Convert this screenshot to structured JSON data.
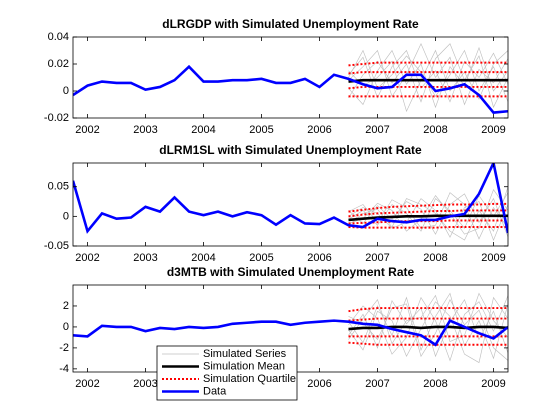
{
  "chart_data": [
    {
      "type": "line",
      "title": "dLRGDP with Simulated Unemployment Rate",
      "xlim": [
        2001.75,
        2009.25
      ],
      "xticks": [
        2002,
        2003,
        2004,
        2005,
        2006,
        2007,
        2008,
        2009
      ],
      "ylim": [
        -0.02,
        0.04
      ],
      "yticks": [
        -0.02,
        0,
        0.02,
        0.04
      ],
      "series": [
        {
          "color": "#bfbfbf",
          "linewidth": 0.5,
          "style": "solid",
          "x": [
            2006.5,
            2006.75,
            2007,
            2007.25,
            2007.5,
            2007.75,
            2008,
            2008.25,
            2008.5,
            2008.75,
            2009,
            2009.25
          ],
          "values": [
            [
              0.012,
              0.025,
              -0.005,
              0.018,
              0.03,
              0.002,
              0.015,
              -0.008,
              0.022,
              0.01,
              0.028,
              0.005
            ],
            [
              0.002,
              -0.01,
              0.015,
              0.03,
              0.005,
              0.02,
              -0.012,
              0.018,
              0.004,
              0.032,
              0,
              0.015
            ],
            [
              0.008,
              0.018,
              0.03,
              -0.004,
              0.012,
              0.035,
              0.01,
              0.025,
              -0.01,
              0.016,
              0.006,
              0.024
            ],
            [
              0.015,
              0.004,
              0.01,
              0.022,
              -0.015,
              0.008,
              0.03,
              0,
              0.014,
              -0.006,
              0.02,
              0.03
            ],
            [
              -0.005,
              0.012,
              0.022,
              0.006,
              0.02,
              -0.008,
              0.024,
              0.035,
              0.008,
              0.026,
              -0.012,
              0.01
            ],
            [
              0.01,
              0.03,
              0.002,
              0.012,
              0.026,
              0.014,
              -0.004,
              0.012,
              0.03,
              0,
              0.018,
              -0.008
            ]
          ]
        },
        {
          "color": "#000000",
          "linewidth": 2,
          "style": "solid",
          "x": [
            2006.5,
            2006.75,
            2007,
            2007.25,
            2007.5,
            2007.75,
            2008,
            2008.25,
            2008.5,
            2008.75,
            2009,
            2009.25
          ],
          "values": [
            0.007,
            0.008,
            0.008,
            0.008,
            0.008,
            0.008,
            0.008,
            0.008,
            0.008,
            0.008,
            0.008,
            0.008
          ]
        },
        {
          "color": "#ff0000",
          "linewidth": 1.5,
          "style": "dotted",
          "x": [
            2006.5,
            2006.75,
            2007,
            2007.25,
            2007.5,
            2007.75,
            2008,
            2008.25,
            2008.5,
            2008.75,
            2009,
            2009.25
          ],
          "values": [
            [
              0.019,
              0.02,
              0.021,
              0.021,
              0.021,
              0.021,
              0.021,
              0.021,
              0.021,
              0.021,
              0.021,
              0.021
            ],
            [
              0.013,
              0.014,
              0.014,
              0.014,
              0.014,
              0.014,
              0.014,
              0.014,
              0.014,
              0.014,
              0.014,
              0.014
            ],
            [
              0.002,
              0.003,
              0.003,
              0.003,
              0.003,
              0.003,
              0.003,
              0.003,
              0.003,
              0.003,
              0.003,
              0.003
            ],
            [
              -0.004,
              -0.004,
              -0.004,
              -0.004,
              -0.004,
              -0.004,
              -0.004,
              -0.004,
              -0.004,
              -0.004,
              -0.004,
              -0.004
            ]
          ]
        },
        {
          "color": "#0000ff",
          "linewidth": 2,
          "style": "solid",
          "x": [
            2001.75,
            2002,
            2002.25,
            2002.5,
            2002.75,
            2003,
            2003.25,
            2003.5,
            2003.75,
            2004,
            2004.25,
            2004.5,
            2004.75,
            2005,
            2005.25,
            2005.5,
            2005.75,
            2006,
            2006.25,
            2006.5,
            2006.75,
            2007,
            2007.25,
            2007.5,
            2007.75,
            2008,
            2008.25,
            2008.5,
            2008.75,
            2009,
            2009.25
          ],
          "values": [
            -0.003,
            0.004,
            0.007,
            0.006,
            0.006,
            0.001,
            0.003,
            0.008,
            0.018,
            0.007,
            0.007,
            0.008,
            0.008,
            0.009,
            0.006,
            0.006,
            0.009,
            0.003,
            0.012,
            0.009,
            0.005,
            0.002,
            0.003,
            0.012,
            0.012,
            0,
            0.002,
            0.005,
            -0.003,
            -0.016,
            -0.015
          ]
        }
      ]
    },
    {
      "type": "line",
      "title": "dLRM1SL with Simulated Unemployment Rate",
      "xlim": [
        2001.75,
        2009.25
      ],
      "xticks": [
        2002,
        2003,
        2004,
        2005,
        2006,
        2007,
        2008,
        2009
      ],
      "ylim": [
        -0.05,
        0.09
      ],
      "yticks": [
        -0.05,
        0,
        0.05
      ],
      "series": [
        {
          "color": "#bfbfbf",
          "linewidth": 0.5,
          "style": "solid",
          "x": [
            2006.5,
            2006.75,
            2007,
            2007.25,
            2007.5,
            2007.75,
            2008,
            2008.25,
            2008.5,
            2008.75,
            2009,
            2009.25
          ],
          "values": [
            [
              -0.005,
              0.01,
              -0.015,
              0.02,
              0.005,
              -0.025,
              0.03,
              0.01,
              -0.02,
              0.035,
              0,
              0.04
            ],
            [
              0.01,
              -0.012,
              0.018,
              -0.005,
              0.025,
              0.012,
              -0.03,
              0.02,
              0.038,
              -0.01,
              0.03,
              -0.035
            ],
            [
              0,
              0.015,
              0.005,
              -0.02,
              -0.01,
              0.03,
              0.01,
              -0.035,
              0.015,
              0.025,
              -0.04,
              0.02
            ],
            [
              -0.012,
              -0.004,
              0.022,
              0.01,
              -0.025,
              -0.005,
              0.035,
              0.005,
              -0.03,
              -0.02,
              0.045,
              0.01
            ],
            [
              0.008,
              0.02,
              -0.01,
              0.028,
              0.015,
              -0.02,
              -0.015,
              0.04,
              0.02,
              -0.038,
              0.015,
              -0.02
            ],
            [
              -0.015,
              0.005,
              0.012,
              -0.018,
              0.03,
              0.02,
              0.005,
              -0.025,
              -0.04,
              0.01,
              -0.025,
              0.05
            ]
          ]
        },
        {
          "color": "#000000",
          "linewidth": 2,
          "style": "solid",
          "x": [
            2006.5,
            2006.75,
            2007,
            2007.25,
            2007.5,
            2007.75,
            2008,
            2008.25,
            2008.5,
            2008.75,
            2009,
            2009.25
          ],
          "values": [
            -0.006,
            -0.004,
            -0.002,
            -0.001,
            0,
            0,
            0.001,
            0.001,
            0.001,
            0.001,
            0.001,
            0.001
          ]
        },
        {
          "color": "#ff0000",
          "linewidth": 1.5,
          "style": "dotted",
          "x": [
            2006.5,
            2006.75,
            2007,
            2007.25,
            2007.5,
            2007.75,
            2008,
            2008.25,
            2008.5,
            2008.75,
            2009,
            2009.25
          ],
          "values": [
            [
              0.008,
              0.011,
              0.014,
              0.016,
              0.017,
              0.018,
              0.019,
              0.02,
              0.02,
              0.02,
              0.021,
              0.021
            ],
            [
              0,
              0.003,
              0.005,
              0.006,
              0.007,
              0.008,
              0.009,
              0.009,
              0.01,
              0.01,
              0.01,
              0.01
            ],
            [
              -0.012,
              -0.011,
              -0.01,
              -0.009,
              -0.008,
              -0.008,
              -0.008,
              -0.007,
              -0.007,
              -0.007,
              -0.007,
              -0.007
            ],
            [
              -0.018,
              -0.019,
              -0.019,
              -0.019,
              -0.019,
              -0.019,
              -0.019,
              -0.018,
              -0.018,
              -0.018,
              -0.018,
              -0.018
            ]
          ]
        },
        {
          "color": "#0000ff",
          "linewidth": 2,
          "style": "solid",
          "x": [
            2001.75,
            2002,
            2002.25,
            2002.5,
            2002.75,
            2003,
            2003.25,
            2003.5,
            2003.75,
            2004,
            2004.25,
            2004.5,
            2004.75,
            2005,
            2005.25,
            2005.5,
            2005.75,
            2006,
            2006.25,
            2006.5,
            2006.75,
            2007,
            2007.25,
            2007.5,
            2007.75,
            2008,
            2008.25,
            2008.5,
            2008.75,
            2009,
            2009.25
          ],
          "values": [
            0.06,
            -0.025,
            0.005,
            -0.004,
            -0.002,
            0.016,
            0.008,
            0.032,
            0.008,
            0.002,
            0.008,
            0,
            0.007,
            0.002,
            -0.014,
            0.002,
            -0.012,
            -0.013,
            -0.002,
            -0.015,
            -0.018,
            -0.004,
            -0.008,
            -0.01,
            -0.006,
            -0.006,
            0,
            0.004,
            0.038,
            0.09,
            -0.028
          ]
        }
      ]
    },
    {
      "type": "line",
      "title": "d3MTB with Simulated Unemployment Rate",
      "xlim": [
        2001.75,
        2009.25
      ],
      "xticks": [
        2002,
        2003,
        2004,
        2005,
        2006,
        2007,
        2008,
        2009
      ],
      "ylim": [
        -4.3,
        4
      ],
      "yticks": [
        -4,
        -2,
        0,
        2
      ],
      "legend": "south-west",
      "series": [
        {
          "name": "Simulated Series",
          "color": "#bfbfbf",
          "linewidth": 0.5,
          "style": "solid",
          "x": [
            2006.5,
            2006.75,
            2007,
            2007.25,
            2007.5,
            2007.75,
            2008,
            2008.25,
            2008.5,
            2008.75,
            2009,
            2009.25
          ],
          "values": [
            [
              0.5,
              -1.5,
              2,
              -0.8,
              2.8,
              -2.2,
              1,
              3.2,
              -1.8,
              0.6,
              -3,
              2.2
            ],
            [
              -0.8,
              1.2,
              -2,
              2.5,
              0.3,
              1.8,
              -2.8,
              0.5,
              2.6,
              -1.2,
              1.5,
              -2.5
            ],
            [
              0.2,
              2,
              0.8,
              -2.6,
              -1,
              2.8,
              0.6,
              -3.2,
              1.2,
              2.4,
              -0.4,
              3
            ],
            [
              -0.3,
              -2.2,
              1.5,
              0.6,
              -2.8,
              -0.2,
              2.4,
              1,
              -2.6,
              -3.4,
              2.8,
              0.8
            ],
            [
              1,
              0.4,
              -1.2,
              1.8,
              2.2,
              -2.8,
              -0.6,
              2.6,
              0.2,
              1.6,
              -2,
              -3.2
            ],
            [
              -1.2,
              0.8,
              2.6,
              -1.6,
              0.6,
              0.9,
              3,
              -1.4,
              -0.8,
              3.2,
              0.6,
              -1
            ]
          ]
        },
        {
          "name": "Simulation Mean",
          "color": "#000000",
          "linewidth": 2,
          "style": "solid",
          "x": [
            2006.5,
            2006.75,
            2007,
            2007.25,
            2007.5,
            2007.75,
            2008,
            2008.25,
            2008.5,
            2008.75,
            2009,
            2009.25
          ],
          "values": [
            -0.2,
            -0.1,
            -0.1,
            0,
            0,
            -0.1,
            0,
            0,
            -0.1,
            0,
            0,
            -0.1
          ]
        },
        {
          "name": "Simulation Quartile",
          "color": "#ff0000",
          "linewidth": 1.5,
          "style": "dotted",
          "x": [
            2006.5,
            2006.75,
            2007,
            2007.25,
            2007.5,
            2007.75,
            2008,
            2008.25,
            2008.5,
            2008.75,
            2009,
            2009.25
          ],
          "values": [
            [
              1.5,
              1.7,
              1.8,
              1.8,
              1.8,
              1.8,
              1.8,
              1.8,
              1.8,
              1.8,
              1.8,
              1.8
            ],
            [
              0.6,
              0.7,
              0.8,
              0.8,
              0.8,
              0.8,
              0.8,
              0.8,
              0.8,
              0.8,
              0.8,
              0.8
            ],
            [
              -0.9,
              -0.9,
              -0.9,
              -0.9,
              -0.9,
              -0.9,
              -0.9,
              -0.9,
              -0.9,
              -0.9,
              -0.9,
              -0.9
            ],
            [
              -1.5,
              -1.6,
              -1.7,
              -1.7,
              -1.7,
              -1.7,
              -1.7,
              -1.7,
              -1.7,
              -1.7,
              -1.7,
              -1.7
            ]
          ]
        },
        {
          "name": "Data",
          "color": "#0000ff",
          "linewidth": 2,
          "style": "solid",
          "x": [
            2001.75,
            2002,
            2002.25,
            2002.5,
            2002.75,
            2003,
            2003.25,
            2003.5,
            2003.75,
            2004,
            2004.25,
            2004.5,
            2004.75,
            2005,
            2005.25,
            2005.5,
            2005.75,
            2006,
            2006.25,
            2006.5,
            2006.75,
            2007,
            2007.25,
            2007.5,
            2007.75,
            2008,
            2008.25,
            2008.5,
            2008.75,
            2009,
            2009.25
          ],
          "values": [
            -0.8,
            -0.9,
            0.1,
            0,
            0,
            -0.4,
            -0.1,
            -0.2,
            0,
            -0.1,
            0,
            0.3,
            0.4,
            0.5,
            0.5,
            0.2,
            0.4,
            0.5,
            0.6,
            0.5,
            0.3,
            0.2,
            -0.2,
            -0.5,
            -0.8,
            -1.7,
            0.6,
            0,
            -0.6,
            -1.1,
            0
          ]
        }
      ]
    }
  ]
}
